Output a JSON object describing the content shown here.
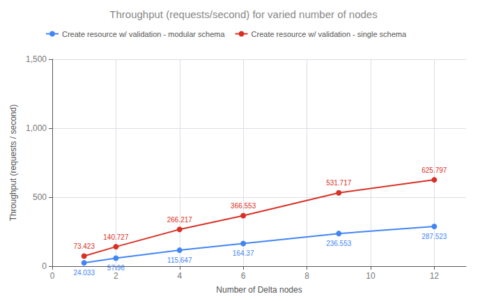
{
  "chart_data": {
    "type": "line",
    "title": "Throughput (requests/second) for varied number of nodes",
    "xlabel": "Number of Delta nodes",
    "ylabel": "Throughput (requests / second)",
    "x": [
      1,
      2,
      4,
      6,
      9,
      12
    ],
    "series": [
      {
        "name": "Create resource w/ validation - modular schema",
        "color": "#4285F4",
        "values": [
          24.033,
          57.96,
          115.647,
          164.37,
          236.553,
          287.523
        ]
      },
      {
        "name": "Create resource w/ validation - single schema",
        "color": "#D93025",
        "values": [
          73.423,
          140.727,
          266.217,
          366.553,
          531.717,
          625.797
        ]
      }
    ],
    "xlim": [
      0,
      13
    ],
    "xticks": [
      0,
      2,
      4,
      6,
      8,
      10,
      12
    ],
    "ylim": [
      0,
      1500
    ],
    "yticks": [
      0,
      500,
      1000,
      1500
    ],
    "grid": true,
    "legend": "upper left",
    "data_labels": true,
    "marker": "circle"
  }
}
